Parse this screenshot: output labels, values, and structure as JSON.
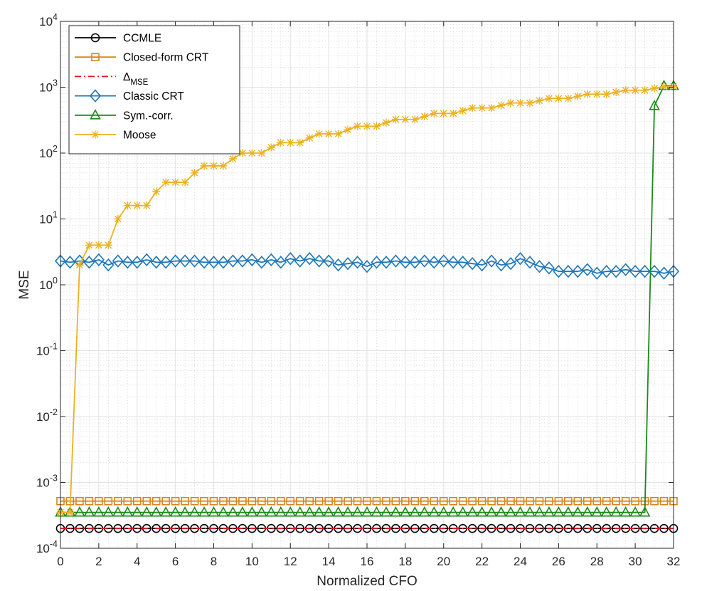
{
  "chart_data": {
    "type": "line",
    "yscale": "log",
    "title": "",
    "xlabel": "Normalized CFO",
    "ylabel": "MSE",
    "xlim": [
      0,
      32
    ],
    "ylim": [
      0.0001,
      10000
    ],
    "grid": true,
    "minor_grid": true,
    "legend_position": "top-left",
    "x_ticks": [
      0,
      2,
      4,
      6,
      8,
      10,
      12,
      14,
      16,
      18,
      20,
      22,
      24,
      26,
      28,
      30,
      32
    ],
    "x_tick_labels": [
      "0",
      "2",
      "4",
      "6",
      "8",
      "10",
      "12",
      "14",
      "16",
      "18",
      "20",
      "22",
      "24",
      "26",
      "28",
      "30",
      "32"
    ],
    "y_ticks": [
      0.0001,
      0.001,
      0.01,
      0.1,
      1,
      10,
      100,
      1000,
      10000
    ],
    "y_tick_labels": [
      {
        "base": "10",
        "exp": "-4"
      },
      {
        "base": "10",
        "exp": "-3"
      },
      {
        "base": "10",
        "exp": "-2"
      },
      {
        "base": "10",
        "exp": "-1"
      },
      {
        "base": "10",
        "exp": "0"
      },
      {
        "base": "10",
        "exp": "1"
      },
      {
        "base": "10",
        "exp": "2"
      },
      {
        "base": "10",
        "exp": "3"
      },
      {
        "base": "10",
        "exp": "4"
      }
    ],
    "series": [
      {
        "name": "CCMLE",
        "color": "#000000",
        "marker": "circle",
        "dash": "solid",
        "x_start": 0,
        "x_step": 0.5,
        "values": [
          0.0002,
          0.0002,
          0.0002,
          0.0002,
          0.0002,
          0.0002,
          0.0002,
          0.0002,
          0.0002,
          0.0002,
          0.0002,
          0.0002,
          0.0002,
          0.0002,
          0.0002,
          0.0002,
          0.0002,
          0.0002,
          0.0002,
          0.0002,
          0.0002,
          0.0002,
          0.0002,
          0.0002,
          0.0002,
          0.0002,
          0.0002,
          0.0002,
          0.0002,
          0.0002,
          0.0002,
          0.0002,
          0.0002,
          0.0002,
          0.0002,
          0.0002,
          0.0002,
          0.0002,
          0.0002,
          0.0002,
          0.0002,
          0.0002,
          0.0002,
          0.0002,
          0.0002,
          0.0002,
          0.0002,
          0.0002,
          0.0002,
          0.0002,
          0.0002,
          0.0002,
          0.0002,
          0.0002,
          0.0002,
          0.0002,
          0.0002,
          0.0002,
          0.0002,
          0.0002,
          0.0002,
          0.0002,
          0.0002,
          0.0002,
          0.0002
        ]
      },
      {
        "name": "Closed-form CRT",
        "color": "#D9841B",
        "marker": "square",
        "dash": "solid",
        "x_start": 0,
        "x_step": 0.5,
        "values": [
          0.00052,
          0.00052,
          0.00052,
          0.00052,
          0.00052,
          0.00052,
          0.00052,
          0.00052,
          0.00052,
          0.00052,
          0.00052,
          0.00052,
          0.00052,
          0.00052,
          0.00052,
          0.00052,
          0.00052,
          0.00052,
          0.00052,
          0.00052,
          0.00052,
          0.00052,
          0.00052,
          0.00052,
          0.00052,
          0.00052,
          0.00052,
          0.00052,
          0.00052,
          0.00052,
          0.00052,
          0.00052,
          0.00052,
          0.00052,
          0.00052,
          0.00052,
          0.00052,
          0.00052,
          0.00052,
          0.00052,
          0.00052,
          0.00052,
          0.00052,
          0.00052,
          0.00052,
          0.00052,
          0.00052,
          0.00052,
          0.00052,
          0.00052,
          0.00052,
          0.00052,
          0.00052,
          0.00052,
          0.00052,
          0.00052,
          0.00052,
          0.00052,
          0.00052,
          0.00052,
          0.00052,
          0.00052,
          0.00052,
          0.00052,
          0.00052
        ]
      },
      {
        "name": "Δ",
        "name_sub": "MSE",
        "color": "#E8141C",
        "marker": "none",
        "dash": "dashdot",
        "x": [
          0,
          32
        ],
        "values": [
          0.0002,
          0.0002
        ]
      },
      {
        "name": "Classic CRT",
        "color": "#1F77B8",
        "marker": "diamond",
        "dash": "solid",
        "x_start": 0,
        "x_step": 0.5,
        "values": [
          2.3,
          2.2,
          2.3,
          2.2,
          2.4,
          2.0,
          2.3,
          2.2,
          2.2,
          2.4,
          2.2,
          2.2,
          2.3,
          2.3,
          2.3,
          2.2,
          2.2,
          2.2,
          2.3,
          2.3,
          2.4,
          2.2,
          2.4,
          2.2,
          2.5,
          2.3,
          2.5,
          2.3,
          2.3,
          2.0,
          2.1,
          2.2,
          1.9,
          2.2,
          2.2,
          2.3,
          2.2,
          2.2,
          2.3,
          2.2,
          2.3,
          2.2,
          2.2,
          2.1,
          2.0,
          2.3,
          2.0,
          2.1,
          2.5,
          2.2,
          1.9,
          1.8,
          1.6,
          1.6,
          1.6,
          1.7,
          1.5,
          1.6,
          1.6,
          1.7,
          1.6,
          1.6,
          1.6,
          1.5,
          1.6
        ]
      },
      {
        "name": "Sym.-corr.",
        "color": "#1A8A1A",
        "marker": "triangle",
        "dash": "solid",
        "x_start": 0,
        "x_step": 0.5,
        "values": [
          0.00035,
          0.00035,
          0.00035,
          0.00035,
          0.00035,
          0.00035,
          0.00035,
          0.00035,
          0.00035,
          0.00035,
          0.00035,
          0.00035,
          0.00035,
          0.00035,
          0.00035,
          0.00035,
          0.00035,
          0.00035,
          0.00035,
          0.00035,
          0.00035,
          0.00035,
          0.00035,
          0.00035,
          0.00035,
          0.00035,
          0.00035,
          0.00035,
          0.00035,
          0.00035,
          0.00035,
          0.00035,
          0.00035,
          0.00035,
          0.00035,
          0.00035,
          0.00035,
          0.00035,
          0.00035,
          0.00035,
          0.00035,
          0.00035,
          0.00035,
          0.00035,
          0.00035,
          0.00035,
          0.00035,
          0.00035,
          0.00035,
          0.00035,
          0.00035,
          0.00035,
          0.00035,
          0.00035,
          0.00035,
          0.00035,
          0.00035,
          0.00035,
          0.00035,
          0.00035,
          0.00035,
          0.00035,
          520,
          1050,
          1050
        ]
      },
      {
        "name": "Moose",
        "color": "#EDB120",
        "marker": "asterisk",
        "dash": "solid",
        "x_start": 0,
        "x_step": 0.5,
        "values": [
          0.00035,
          0.00035,
          2.0,
          4.0,
          4.0,
          4.0,
          10,
          16,
          16,
          16,
          26,
          36,
          36,
          36,
          50,
          64,
          64,
          64,
          82,
          100,
          100,
          100,
          122,
          144,
          144,
          144,
          170,
          196,
          196,
          196,
          226,
          256,
          256,
          256,
          290,
          324,
          324,
          324,
          360,
          400,
          400,
          400,
          440,
          484,
          484,
          484,
          530,
          576,
          576,
          576,
          626,
          676,
          676,
          676,
          730,
          784,
          784,
          784,
          840,
          900,
          900,
          900,
          960,
          1024,
          1024
        ]
      }
    ]
  }
}
